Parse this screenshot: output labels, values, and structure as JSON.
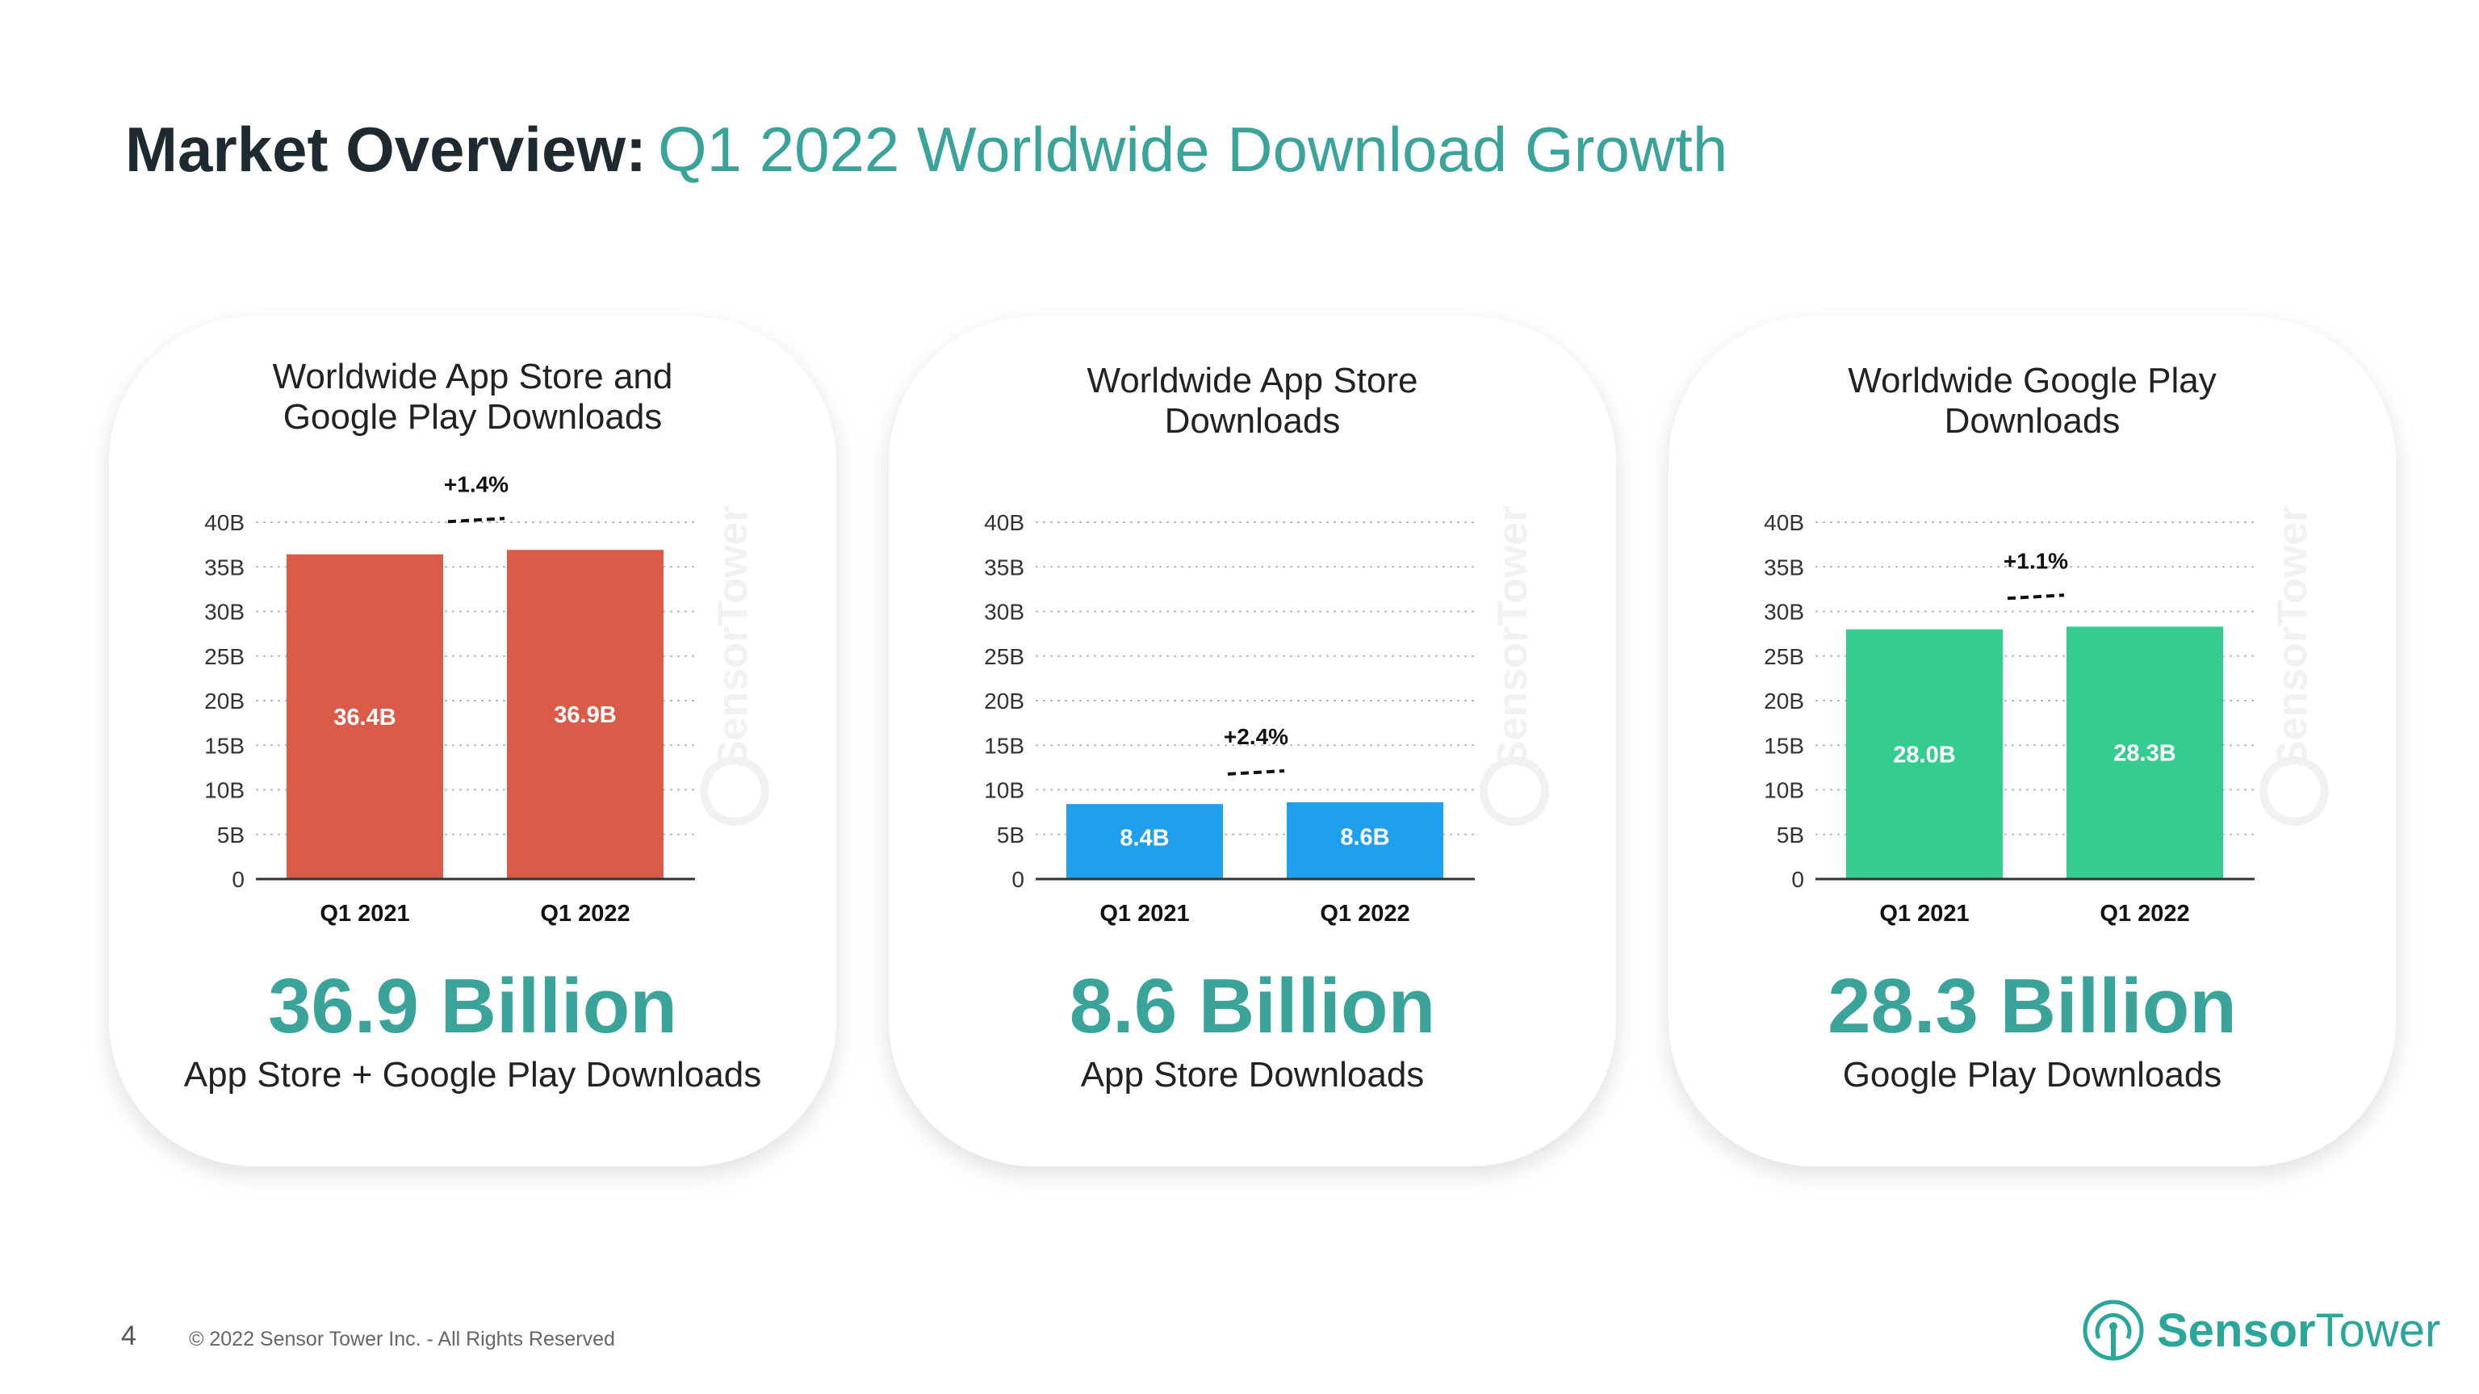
{
  "header": {
    "title_bold": "Market Overview:",
    "title_light": "Q1 2022 Worldwide Download Growth"
  },
  "cards": [
    {
      "title_line1": "Worldwide App Store and",
      "title_line2": "Google Play Downloads",
      "big_number": "36.9 Billion",
      "subtitle": "App Store + Google Play Downloads"
    },
    {
      "title_line1": "Worldwide App Store",
      "title_line2": "Downloads",
      "big_number": "8.6 Billion",
      "subtitle": "App Store Downloads"
    },
    {
      "title_line1": "Worldwide Google Play",
      "title_line2": "Downloads",
      "big_number": "28.3 Billion",
      "subtitle": "Google Play Downloads"
    }
  ],
  "chart_data": [
    {
      "type": "bar",
      "title": "Worldwide App Store and Google Play Downloads",
      "categories": [
        "Q1 2021",
        "Q1 2022"
      ],
      "values": [
        36.4,
        36.9
      ],
      "data_labels": [
        "36.4B",
        "36.9B"
      ],
      "growth_label": "+1.4%",
      "color": "#d95b48",
      "ylim": [
        0,
        40
      ],
      "yticks": [
        "0",
        "5B",
        "10B",
        "15B",
        "20B",
        "25B",
        "30B",
        "35B",
        "40B"
      ],
      "grid": true
    },
    {
      "type": "bar",
      "title": "Worldwide App Store Downloads",
      "categories": [
        "Q1 2021",
        "Q1 2022"
      ],
      "values": [
        8.4,
        8.6
      ],
      "data_labels": [
        "8.4B",
        "8.6B"
      ],
      "growth_label": "+2.4%",
      "color": "#1fa0ef",
      "ylim": [
        0,
        40
      ],
      "yticks": [
        "0",
        "5B",
        "10B",
        "15B",
        "20B",
        "25B",
        "30B",
        "35B",
        "40B"
      ],
      "grid": true
    },
    {
      "type": "bar",
      "title": "Worldwide Google Play Downloads",
      "categories": [
        "Q1 2021",
        "Q1 2022"
      ],
      "values": [
        28.0,
        28.3
      ],
      "data_labels": [
        "28.0B",
        "28.3B"
      ],
      "growth_label": "+1.1%",
      "color": "#35cc8f",
      "ylim": [
        0,
        40
      ],
      "yticks": [
        "0",
        "5B",
        "10B",
        "15B",
        "20B",
        "25B",
        "30B",
        "35B",
        "40B"
      ],
      "grid": true
    }
  ],
  "watermark": "SensorTower",
  "footer": {
    "page": "4",
    "copyright": "© 2022 Sensor Tower Inc. - All Rights Reserved"
  },
  "logo": {
    "bold": "Sensor",
    "light": "Tower",
    "color": "#2aa79a"
  }
}
